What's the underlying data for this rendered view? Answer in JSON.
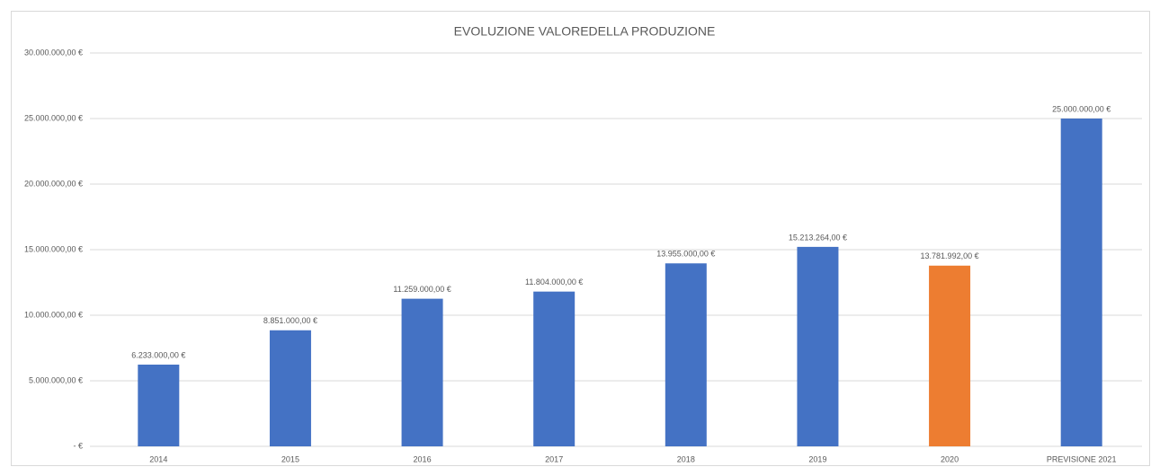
{
  "chart_data": {
    "type": "bar",
    "title": "EVOLUZIONE VALOREDELLA PRODUZIONE",
    "categories": [
      "2014",
      "2015",
      "2016",
      "2017",
      "2018",
      "2019",
      "2020",
      "PREVISIONE 2021"
    ],
    "values": [
      6233000,
      8851000,
      11259000,
      11804000,
      13955000,
      15213264,
      13781992,
      25000000
    ],
    "value_labels": [
      "6.233.000,00 €",
      "8.851.000,00 €",
      "11.259.000,00 €",
      "11.804.000,00 €",
      "13.955.000,00 €",
      "15.213.264,00 €",
      "13.781.992,00 €",
      "25.000.000,00 €"
    ],
    "colors": [
      "#4472c4",
      "#4472c4",
      "#4472c4",
      "#4472c4",
      "#4472c4",
      "#4472c4",
      "#ed7d31",
      "#4472c4"
    ],
    "ylim": [
      0,
      30000000
    ],
    "yticks": [
      {
        "value": 0,
        "label": "-  €"
      },
      {
        "value": 5000000,
        "label": "5.000.000,00 €"
      },
      {
        "value": 10000000,
        "label": "10.000.000,00 €"
      },
      {
        "value": 15000000,
        "label": "15.000.000,00 €"
      },
      {
        "value": 20000000,
        "label": "20.000.000,00 €"
      },
      {
        "value": 25000000,
        "label": "25.000.000,00 €"
      },
      {
        "value": 30000000,
        "label": "30.000.000,00 €"
      }
    ],
    "grid": true
  }
}
